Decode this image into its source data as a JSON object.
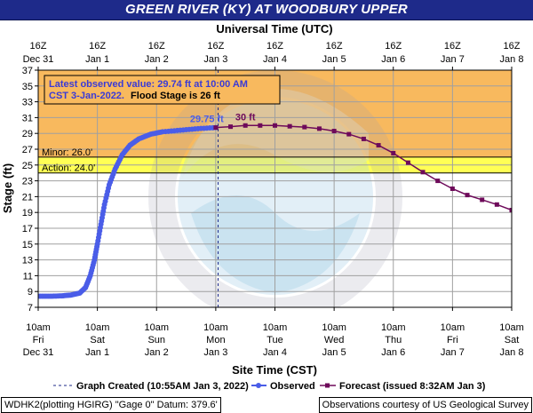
{
  "title": "GREEN RIVER (KY) AT WOODBURY UPPER",
  "top_axis_title": "Universal Time (UTC)",
  "bottom_axis_title": "Site Time (CST)",
  "y_axis_title": "Stage (ft)",
  "top_ticks": [
    {
      "line1": "16Z",
      "line2": "Dec 31"
    },
    {
      "line1": "16Z",
      "line2": "Jan 1"
    },
    {
      "line1": "16Z",
      "line2": "Jan 2"
    },
    {
      "line1": "16Z",
      "line2": "Jan 3"
    },
    {
      "line1": "16Z",
      "line2": "Jan 4"
    },
    {
      "line1": "16Z",
      "line2": "Jan 5"
    },
    {
      "line1": "16Z",
      "line2": "Jan 6"
    },
    {
      "line1": "16Z",
      "line2": "Jan 7"
    },
    {
      "line1": "16Z",
      "line2": "Jan 8"
    }
  ],
  "bottom_ticks": [
    {
      "line1": "10am",
      "line2": "Fri",
      "line3": "Dec 31"
    },
    {
      "line1": "10am",
      "line2": "Sat",
      "line3": "Jan 1"
    },
    {
      "line1": "10am",
      "line2": "Sun",
      "line3": "Jan 2"
    },
    {
      "line1": "10am",
      "line2": "Mon",
      "line3": "Jan 3"
    },
    {
      "line1": "10am",
      "line2": "Tue",
      "line3": "Jan 4"
    },
    {
      "line1": "10am",
      "line2": "Wed",
      "line3": "Jan 5"
    },
    {
      "line1": "10am",
      "line2": "Thu",
      "line3": "Jan 6"
    },
    {
      "line1": "10am",
      "line2": "Fri",
      "line3": "Jan 7"
    },
    {
      "line1": "10am",
      "line2": "Sat",
      "line3": "Jan 8"
    }
  ],
  "info_box": {
    "line1": "Latest observed value: 29.74 ft at 10:00 AM",
    "line2a": "CST 3-Jan-2022.",
    "line2b": "Flood Stage is 26 ft"
  },
  "legend": {
    "graph_created": "Graph Created (10:55AM Jan 3, 2022)",
    "observed": "Observed",
    "forecast": "Forecast (issued 8:32AM Jan 3)"
  },
  "footer": {
    "left": "WDHK2(plotting HGIRG) \"Gage 0\" Datum: 379.6'",
    "right": "Observations courtesy of US Geological Survey"
  },
  "colors": {
    "title_bg": "#1e2a8a",
    "moderate_band": "#f8b95e",
    "minor_band": "#ffff55",
    "action_band": "#ffff99",
    "below_band": "#ffffff",
    "observed": "#4a5de8",
    "forecast": "#6e0a5a",
    "info_text": "#3a3ad6",
    "info_bg": "#f8b95e"
  },
  "chart_data": {
    "type": "line",
    "x_unit": "days since 10am CST Dec 31",
    "ylim": [
      7,
      37
    ],
    "y_ticks": [
      7,
      9,
      11,
      13,
      15,
      17,
      19,
      21,
      23,
      25,
      27,
      29,
      31,
      33,
      35,
      37
    ],
    "xlim": [
      0,
      8
    ],
    "grid": true,
    "thresholds": [
      {
        "name": "Minor",
        "value": 26.0,
        "label": "Minor: 26.0'"
      },
      {
        "name": "Action",
        "value": 24.0,
        "label": "Action: 24.0'"
      }
    ],
    "flood_stage": 26,
    "graph_created_x": 3.04,
    "annotations": [
      {
        "text": "29.75 ft",
        "x": 2.85,
        "y": 29.75,
        "series": "Observed"
      },
      {
        "text": "30 ft",
        "x": 3.5,
        "y": 30.0,
        "series": "Forecast"
      }
    ],
    "series": [
      {
        "name": "Observed",
        "marker": "circle",
        "points": [
          [
            0.0,
            8.4
          ],
          [
            0.2,
            8.4
          ],
          [
            0.4,
            8.45
          ],
          [
            0.55,
            8.55
          ],
          [
            0.7,
            8.8
          ],
          [
            0.8,
            9.5
          ],
          [
            0.88,
            11.0
          ],
          [
            0.95,
            13.0
          ],
          [
            1.0,
            15.0
          ],
          [
            1.06,
            17.5
          ],
          [
            1.12,
            20.0
          ],
          [
            1.2,
            22.5
          ],
          [
            1.3,
            24.5
          ],
          [
            1.42,
            26.3
          ],
          [
            1.55,
            27.5
          ],
          [
            1.7,
            28.3
          ],
          [
            1.9,
            28.9
          ],
          [
            2.1,
            29.2
          ],
          [
            2.4,
            29.4
          ],
          [
            2.7,
            29.6
          ],
          [
            3.0,
            29.74
          ]
        ]
      },
      {
        "name": "Forecast",
        "marker": "square",
        "points": [
          [
            3.0,
            29.74
          ],
          [
            3.25,
            29.85
          ],
          [
            3.5,
            30.0
          ],
          [
            3.75,
            30.0
          ],
          [
            4.0,
            30.0
          ],
          [
            4.25,
            29.9
          ],
          [
            4.5,
            29.8
          ],
          [
            4.75,
            29.6
          ],
          [
            5.0,
            29.3
          ],
          [
            5.25,
            28.9
          ],
          [
            5.5,
            28.3
          ],
          [
            5.75,
            27.5
          ],
          [
            6.0,
            26.5
          ],
          [
            6.25,
            25.3
          ],
          [
            6.5,
            24.1
          ],
          [
            6.75,
            23.0
          ],
          [
            7.0,
            22.0
          ],
          [
            7.25,
            21.2
          ],
          [
            7.5,
            20.6
          ],
          [
            7.75,
            20.0
          ],
          [
            8.0,
            19.3
          ]
        ]
      }
    ]
  }
}
